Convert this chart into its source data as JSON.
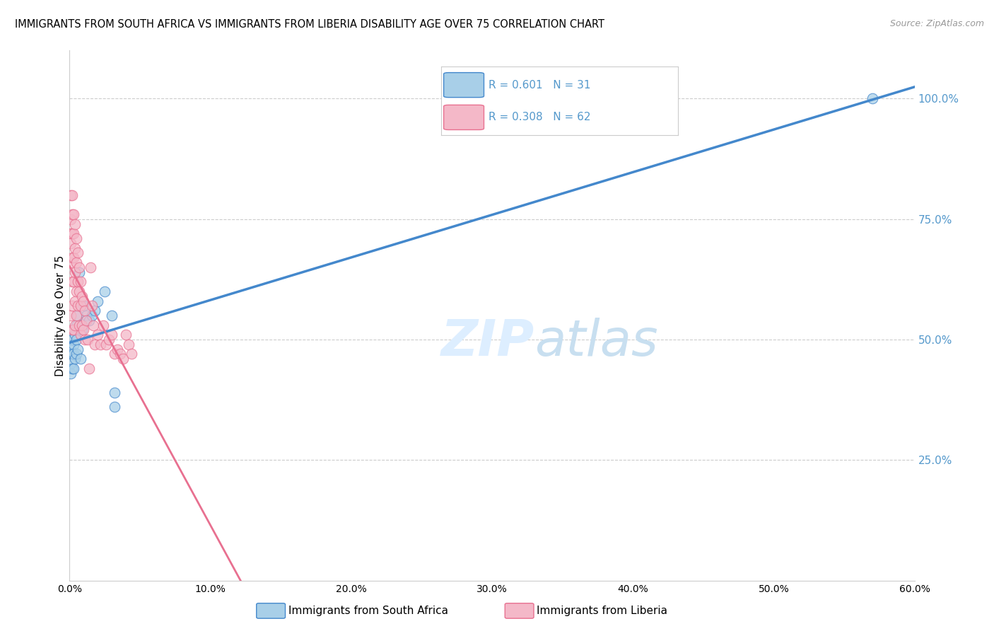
{
  "title": "IMMIGRANTS FROM SOUTH AFRICA VS IMMIGRANTS FROM LIBERIA DISABILITY AGE OVER 75 CORRELATION CHART",
  "source": "Source: ZipAtlas.com",
  "ylabel": "Disability Age Over 75",
  "xlim": [
    0.0,
    0.6
  ],
  "ylim": [
    0.0,
    1.1
  ],
  "xtick_labels": [
    "0.0%",
    "",
    "10.0%",
    "",
    "20.0%",
    "",
    "30.0%",
    "",
    "40.0%",
    "",
    "50.0%",
    "",
    "60.0%"
  ],
  "xtick_values": [
    0.0,
    0.05,
    0.1,
    0.15,
    0.2,
    0.25,
    0.3,
    0.35,
    0.4,
    0.45,
    0.5,
    0.55,
    0.6
  ],
  "ytick_labels_right": [
    "25.0%",
    "50.0%",
    "75.0%",
    "100.0%"
  ],
  "ytick_values_right": [
    0.25,
    0.5,
    0.75,
    1.0
  ],
  "R_blue": 0.601,
  "N_blue": 31,
  "R_pink": 0.308,
  "N_pink": 62,
  "legend_label_blue": "Immigrants from South Africa",
  "legend_label_pink": "Immigrants from Liberia",
  "color_blue": "#a8cfe8",
  "color_pink": "#f4b8c8",
  "color_blue_line": "#4488cc",
  "color_pink_line": "#e87090",
  "color_right_axis": "#5599cc",
  "watermark_color": "#ddeeff",
  "background_color": "#ffffff",
  "blue_x": [
    0.001,
    0.001,
    0.001,
    0.002,
    0.002,
    0.002,
    0.003,
    0.003,
    0.003,
    0.003,
    0.004,
    0.004,
    0.005,
    0.005,
    0.005,
    0.006,
    0.006,
    0.007,
    0.008,
    0.009,
    0.01,
    0.012,
    0.014,
    0.016,
    0.018,
    0.02,
    0.025,
    0.03,
    0.032,
    0.032,
    0.57
  ],
  "blue_y": [
    0.48,
    0.45,
    0.43,
    0.5,
    0.47,
    0.44,
    0.52,
    0.49,
    0.47,
    0.44,
    0.51,
    0.46,
    0.53,
    0.5,
    0.47,
    0.55,
    0.48,
    0.64,
    0.46,
    0.52,
    0.57,
    0.55,
    0.54,
    0.55,
    0.56,
    0.58,
    0.6,
    0.55,
    0.39,
    0.36,
    1.0
  ],
  "pink_x": [
    0.001,
    0.001,
    0.001,
    0.001,
    0.001,
    0.001,
    0.002,
    0.002,
    0.002,
    0.002,
    0.002,
    0.002,
    0.002,
    0.003,
    0.003,
    0.003,
    0.003,
    0.003,
    0.004,
    0.004,
    0.004,
    0.004,
    0.004,
    0.005,
    0.005,
    0.005,
    0.005,
    0.006,
    0.006,
    0.006,
    0.007,
    0.007,
    0.007,
    0.008,
    0.008,
    0.008,
    0.009,
    0.009,
    0.01,
    0.01,
    0.011,
    0.011,
    0.012,
    0.013,
    0.014,
    0.015,
    0.016,
    0.017,
    0.018,
    0.02,
    0.022,
    0.024,
    0.026,
    0.028,
    0.03,
    0.032,
    0.034,
    0.036,
    0.038,
    0.04,
    0.042,
    0.044
  ],
  "pink_y": [
    0.8,
    0.75,
    0.72,
    0.7,
    0.66,
    0.55,
    0.8,
    0.76,
    0.72,
    0.67,
    0.62,
    0.57,
    0.52,
    0.76,
    0.72,
    0.67,
    0.62,
    0.52,
    0.74,
    0.69,
    0.64,
    0.58,
    0.53,
    0.71,
    0.66,
    0.6,
    0.55,
    0.68,
    0.62,
    0.57,
    0.65,
    0.6,
    0.53,
    0.62,
    0.57,
    0.51,
    0.59,
    0.53,
    0.58,
    0.52,
    0.56,
    0.5,
    0.54,
    0.5,
    0.44,
    0.65,
    0.57,
    0.53,
    0.49,
    0.51,
    0.49,
    0.53,
    0.49,
    0.5,
    0.51,
    0.47,
    0.48,
    0.47,
    0.46,
    0.51,
    0.49,
    0.47
  ]
}
